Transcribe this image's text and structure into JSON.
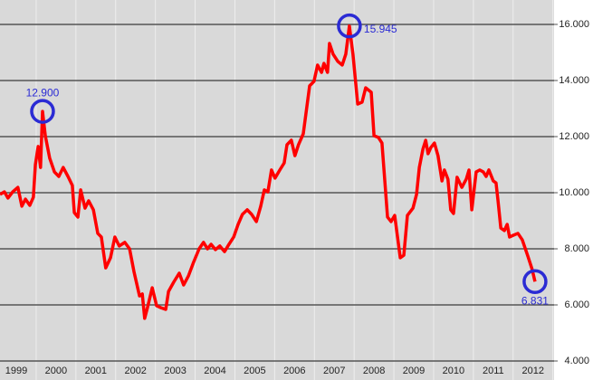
{
  "chart_data": {
    "type": "line",
    "x": [
      1999.09,
      1999.2,
      1999.29,
      1999.41,
      1999.54,
      1999.64,
      1999.73,
      1999.84,
      1999.93,
      1999.98,
      2000.05,
      2000.11,
      2000.16,
      2000.23,
      2000.34,
      2000.46,
      2000.57,
      2000.68,
      2000.8,
      2000.91,
      2000.96,
      2001.05,
      2001.12,
      2001.23,
      2001.32,
      2001.44,
      2001.55,
      2001.64,
      2001.75,
      2001.87,
      2001.98,
      2002.09,
      2002.23,
      2002.35,
      2002.46,
      2002.6,
      2002.67,
      2002.73,
      2002.8,
      2002.92,
      2003.03,
      2003.14,
      2003.26,
      2003.33,
      2003.46,
      2003.6,
      2003.71,
      2003.83,
      2003.96,
      2004.1,
      2004.21,
      2004.31,
      2004.4,
      2004.51,
      2004.62,
      2004.74,
      2004.85,
      2004.97,
      2005.08,
      2005.19,
      2005.31,
      2005.42,
      2005.54,
      2005.65,
      2005.74,
      2005.83,
      2005.92,
      2006.01,
      2006.13,
      2006.24,
      2006.31,
      2006.42,
      2006.51,
      2006.6,
      2006.72,
      2006.88,
      2006.99,
      2007.08,
      2007.18,
      2007.24,
      2007.33,
      2007.38,
      2007.47,
      2007.59,
      2007.7,
      2007.79,
      2007.88,
      2007.97,
      2008.09,
      2008.2,
      2008.29,
      2008.43,
      2008.5,
      2008.61,
      2008.7,
      2008.84,
      2008.93,
      2009.02,
      2009.16,
      2009.25,
      2009.34,
      2009.48,
      2009.57,
      2009.64,
      2009.73,
      2009.8,
      2009.86,
      2009.93,
      2010.02,
      2010.11,
      2010.21,
      2010.27,
      2010.36,
      2010.43,
      2010.5,
      2010.59,
      2010.71,
      2010.82,
      2010.89,
      2010.96,
      2011.07,
      2011.16,
      2011.25,
      2011.32,
      2011.39,
      2011.5,
      2011.57,
      2011.62,
      2011.69,
      2011.78,
      2011.85,
      2011.91,
      2012.0,
      2012.12,
      2012.23,
      2012.37,
      2012.48,
      2012.55
    ],
    "series": [
      {
        "color": "#ff0000",
        "values": [
          9.94,
          10.03,
          9.81,
          10.03,
          10.19,
          9.52,
          9.77,
          9.55,
          9.84,
          11.0,
          11.65,
          10.9,
          12.9,
          12.03,
          11.23,
          10.74,
          10.58,
          10.9,
          10.58,
          10.26,
          9.29,
          9.13,
          10.1,
          9.45,
          9.71,
          9.39,
          8.55,
          8.42,
          7.32,
          7.68,
          8.42,
          8.1,
          8.23,
          8.0,
          7.19,
          6.32,
          6.39,
          5.52,
          5.9,
          6.61,
          5.97,
          5.9,
          5.84,
          6.48,
          6.81,
          7.13,
          6.71,
          7.03,
          7.52,
          8.0,
          8.23,
          8.0,
          8.16,
          7.97,
          8.1,
          7.9,
          8.16,
          8.42,
          8.87,
          9.23,
          9.39,
          9.23,
          8.97,
          9.52,
          10.1,
          10.03,
          10.81,
          10.52,
          10.81,
          11.06,
          11.71,
          11.87,
          11.32,
          11.71,
          12.1,
          13.81,
          13.97,
          14.55,
          14.29,
          14.61,
          14.29,
          15.32,
          14.94,
          14.68,
          14.55,
          14.94,
          15.945,
          14.94,
          13.16,
          13.23,
          13.74,
          13.58,
          12.03,
          11.97,
          11.77,
          9.13,
          8.97,
          9.19,
          7.68,
          7.77,
          9.19,
          9.45,
          9.94,
          10.9,
          11.55,
          11.87,
          11.39,
          11.61,
          11.77,
          11.32,
          10.42,
          10.81,
          10.48,
          9.39,
          9.26,
          10.55,
          10.19,
          10.48,
          10.81,
          9.39,
          10.74,
          10.81,
          10.74,
          10.58,
          10.81,
          10.42,
          10.35,
          9.71,
          8.74,
          8.65,
          8.87,
          8.42,
          8.48,
          8.55,
          8.32,
          7.74,
          7.26,
          6.831
        ],
        "value_labels": [
          null,
          null,
          null,
          null,
          null,
          null,
          null,
          null,
          null,
          null,
          null,
          null,
          "12.900",
          null,
          null,
          null,
          null,
          null,
          null,
          null,
          null,
          null,
          null,
          null,
          null,
          null,
          null,
          null,
          null,
          null,
          null,
          null,
          null,
          null,
          null,
          null,
          null,
          null,
          null,
          null,
          null,
          null,
          null,
          null,
          null,
          null,
          null,
          null,
          null,
          null,
          null,
          null,
          null,
          null,
          null,
          null,
          null,
          null,
          null,
          null,
          null,
          null,
          null,
          null,
          null,
          null,
          null,
          null,
          null,
          null,
          null,
          null,
          null,
          null,
          null,
          null,
          null,
          null,
          null,
          null,
          null,
          null,
          null,
          null,
          null,
          null,
          "15.945",
          null,
          null,
          null,
          null,
          null,
          null,
          null,
          null,
          null,
          null,
          null,
          null,
          null,
          null,
          null,
          null,
          null,
          null,
          null,
          null,
          null,
          null,
          null,
          null,
          null,
          null,
          null,
          null,
          null,
          null,
          null,
          null,
          null,
          null,
          null,
          null,
          null,
          null,
          null,
          null,
          null,
          null,
          null,
          null,
          null,
          null,
          null,
          null,
          null,
          null,
          "6.831"
        ]
      }
    ],
    "annotation_color": "#2b2bd4",
    "xlim": [
      1999.09,
      2013.03
    ],
    "xticks": [
      {
        "value": 1999.5,
        "label": "1999"
      },
      {
        "value": 2000.5,
        "label": "2000"
      },
      {
        "value": 2001.5,
        "label": "2001"
      },
      {
        "value": 2002.5,
        "label": "2002"
      },
      {
        "value": 2003.5,
        "label": "2003"
      },
      {
        "value": 2004.5,
        "label": "2004"
      },
      {
        "value": 2005.5,
        "label": "2005"
      },
      {
        "value": 2006.5,
        "label": "2006"
      },
      {
        "value": 2007.5,
        "label": "2007"
      },
      {
        "value": 2008.5,
        "label": "2008"
      },
      {
        "value": 2009.5,
        "label": "2009"
      },
      {
        "value": 2010.5,
        "label": "2010"
      },
      {
        "value": 2011.5,
        "label": "2011"
      },
      {
        "value": 2012.5,
        "label": "2012"
      }
    ],
    "ylim": [
      4,
      16.87
    ],
    "yticks": [
      {
        "value": 4,
        "label": "4.000"
      },
      {
        "value": 6,
        "label": "6.000"
      },
      {
        "value": 8,
        "label": "8.000"
      },
      {
        "value": 10,
        "label": "10.000"
      },
      {
        "value": 12,
        "label": "12.000"
      },
      {
        "value": 14,
        "label": "14.000"
      },
      {
        "value": 16,
        "label": "16.000"
      }
    ],
    "grid": true
  }
}
